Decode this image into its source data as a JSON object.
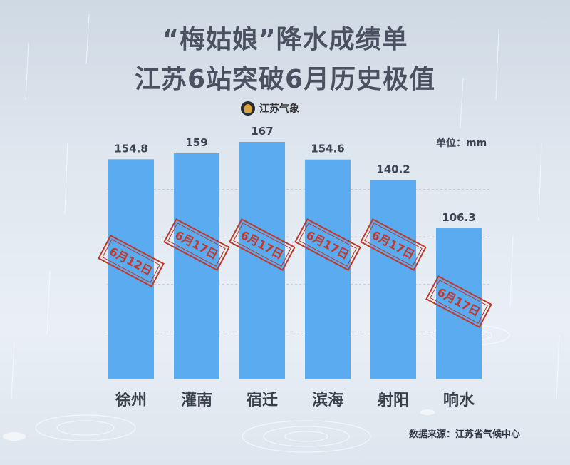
{
  "title_line1": "“梅姑娘”降水成绩单",
  "title_line2": "江苏6站突破6月历史极值",
  "logo_text": "江苏气象",
  "unit_label": "单位：mm",
  "source_label": "数据来源：江苏省气候中心",
  "colors": {
    "bar": "#5aabf0",
    "stamp": "#c0392b",
    "value_label": "#3d4554",
    "category_label": "#3a3f4a"
  },
  "chart_data": {
    "type": "bar",
    "categories": [
      "徐州",
      "灌南",
      "宿迁",
      "滨海",
      "射阳",
      "响水"
    ],
    "values": [
      154.8,
      159,
      167,
      154.6,
      140.2,
      106.3
    ],
    "value_labels": [
      "154.8",
      "159",
      "167",
      "154.6",
      "140.2",
      "106.3"
    ],
    "stamps": [
      "6月12日",
      "6月17日",
      "6月17日",
      "6月17日",
      "6月17日",
      "6月17日"
    ],
    "ylim": [
      0,
      167
    ],
    "grid": true,
    "title": "",
    "xlabel": "",
    "ylabel": ""
  }
}
